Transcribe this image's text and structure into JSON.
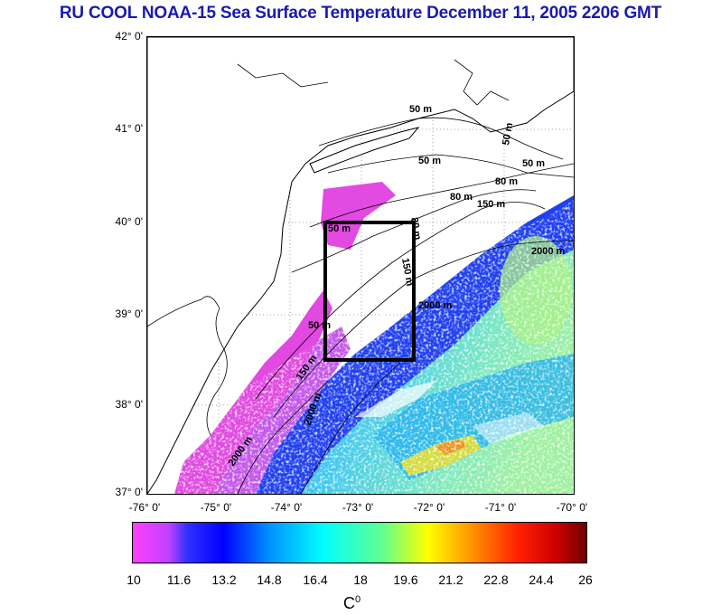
{
  "title": "RU COOL  NOAA-15 Sea Surface Temperature December 11, 2005 2206 GMT",
  "y_ticks": [
    "42° 0'",
    "41° 0'",
    "40° 0'",
    "39° 0'",
    "38° 0'",
    "37° 0'"
  ],
  "x_ticks": [
    "-76° 0'",
    "-75° 0'",
    "-74° 0'",
    "-73° 0'",
    "-72° 0'",
    "-71° 0'",
    "-70° 0'"
  ],
  "contour_labels": [
    "50 m",
    "50 m",
    "50 m",
    "80 m",
    "80 m",
    "150 m",
    "2000 m",
    "2000 m",
    "2000 m",
    "80 m",
    "150 m",
    "50 m",
    "50 m",
    "2000 m",
    "150 m",
    "50 m"
  ],
  "colorbar": {
    "labels": [
      "10",
      "11.6",
      "13.2",
      "14.8",
      "16.4",
      "18",
      "19.6",
      "21.2",
      "22.8",
      "24.4",
      "26"
    ],
    "unit": "C",
    "unit_sup": "0"
  },
  "colors": {
    "title": "#1a1ab0",
    "coast": "#000000",
    "box": "#000000"
  }
}
